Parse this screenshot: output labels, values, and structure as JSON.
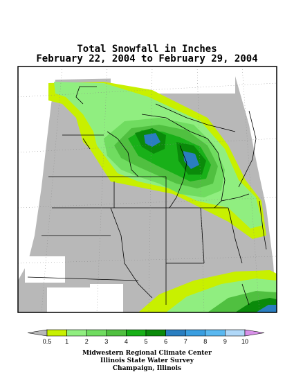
{
  "title": {
    "line1": "Total Snowfall in Inches",
    "line2": "February 22, 2004 to February 29, 2004"
  },
  "legend": {
    "labels": [
      "0.5",
      "1",
      "2",
      "3",
      "4",
      "5",
      "6",
      "7",
      "8",
      "9",
      "10"
    ],
    "colors": [
      "#c8f000",
      "#90ee80",
      "#70dc60",
      "#50c040",
      "#18b018",
      "#0a8a0a",
      "#2a7ec0",
      "#3a9ee0",
      "#5ab8f0",
      "#b0d8f8",
      "#d890e8"
    ],
    "under_color": "#b8b8b8"
  },
  "map_colors": {
    "no_snow": "#b8b8b8",
    "background": "#ffffff",
    "land_white": "#ffffff"
  },
  "credit": {
    "line1": "Midwestern Regional Climate Center",
    "line2": "Illinois State Water Survey",
    "line3": "Champaign, Illinois"
  }
}
